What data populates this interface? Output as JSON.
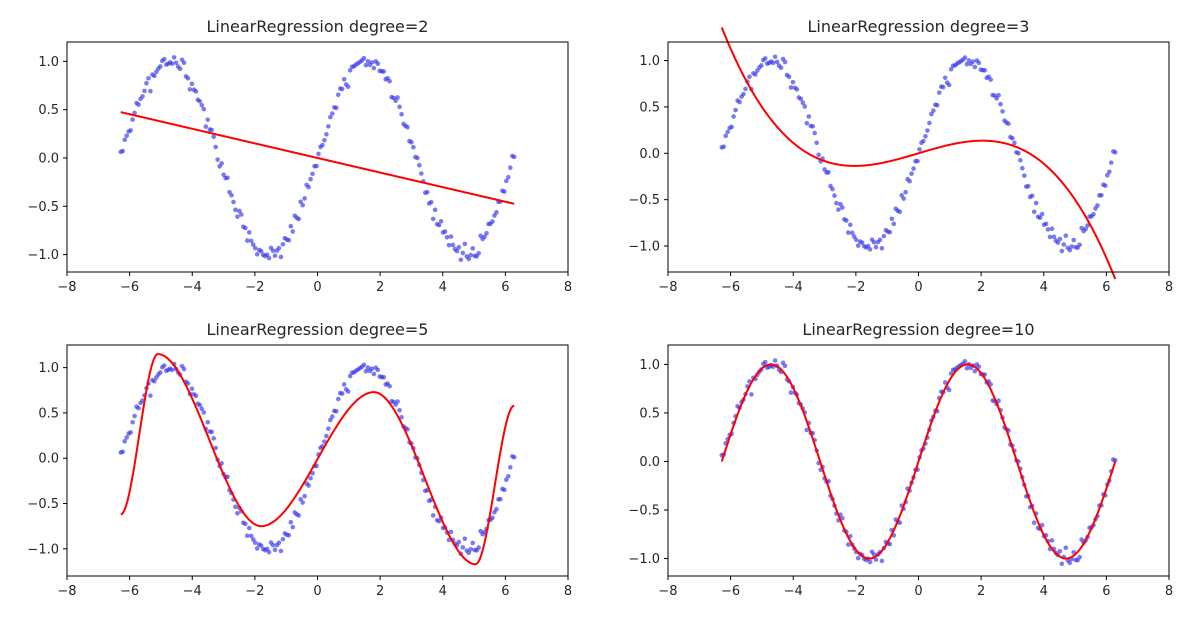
{
  "chart_data": [
    {
      "type": "scatter",
      "title": "LinearRegression degree=2",
      "xlabel": "",
      "ylabel": "",
      "xlim": [
        -8,
        8
      ],
      "ylim": [
        -1.18,
        1.2
      ],
      "xticks": [
        -8,
        -6,
        -4,
        -2,
        0,
        2,
        4,
        6,
        8
      ],
      "yticks": [
        -1.0,
        -0.5,
        0.0,
        0.5,
        1.0
      ],
      "scatter_color": "#3333ee",
      "scatter_series": "sin(x) + noise, x in [-6.28, 6.28], ~200 points",
      "fit_color": "#ff0000",
      "fit_coefficients": [
        0.0,
        -0.0755,
        0.0
      ]
    },
    {
      "type": "scatter",
      "title": "LinearRegression degree=3",
      "xlabel": "",
      "ylabel": "",
      "xlim": [
        -8,
        8
      ],
      "ylim": [
        -1.28,
        1.2
      ],
      "xticks": [
        -8,
        -6,
        -4,
        -2,
        0,
        2,
        4,
        6,
        8
      ],
      "yticks": [
        -1.0,
        -0.5,
        0.0,
        0.5,
        1.0
      ],
      "scatter_color": "#3333ee",
      "fit_color": "#ff0000",
      "fit_coefficients": [
        0.0,
        0.1,
        0.0,
        -0.008
      ]
    },
    {
      "type": "scatter",
      "title": "LinearRegression degree=5",
      "xlabel": "",
      "ylabel": "",
      "xlim": [
        -8,
        8
      ],
      "ylim": [
        -1.3,
        1.25
      ],
      "xticks": [
        -8,
        -6,
        -4,
        -2,
        0,
        2,
        4,
        6,
        8
      ],
      "yticks": [
        -1.0,
        -0.5,
        0.0,
        0.5,
        1.0
      ],
      "scatter_color": "#3333ee",
      "fit_color": "#ff0000",
      "fit_extrema": [
        [
          -6.28,
          -0.62
        ],
        [
          -5.1,
          1.15
        ],
        [
          -1.8,
          -0.75
        ],
        [
          1.8,
          0.73
        ],
        [
          5.05,
          -1.17
        ],
        [
          6.28,
          0.58
        ]
      ]
    },
    {
      "type": "scatter",
      "title": "LinearRegression degree=10",
      "xlabel": "",
      "ylabel": "",
      "xlim": [
        -8,
        8
      ],
      "ylim": [
        -1.18,
        1.2
      ],
      "xticks": [
        -8,
        -6,
        -4,
        -2,
        0,
        2,
        4,
        6,
        8
      ],
      "yticks": [
        -1.0,
        -0.5,
        0.0,
        0.5,
        1.0
      ],
      "scatter_color": "#3333ee",
      "fit_color": "#ff0000",
      "fit_function": "sin(x)"
    }
  ]
}
